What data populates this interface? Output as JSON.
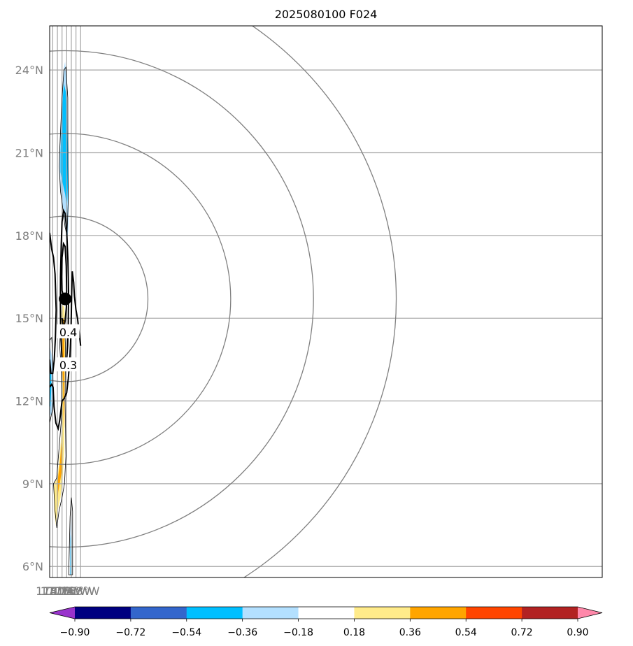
{
  "chart_data": {
    "type": "heatmap",
    "title": "2025080100 F024",
    "map": {
      "lon_range": [
        172,
        169
      ],
      "lat_range": [
        5.6,
        25.6
      ],
      "x_ticks": [
        {
          "lon": 174,
          "label": "174°E"
        },
        {
          "lon": 177,
          "label": "177°E"
        },
        {
          "lon": 180,
          "label": "180°W"
        },
        {
          "lon": 183,
          "label": "177°W"
        },
        {
          "lon": 186,
          "label": "174°W"
        },
        {
          "lon": 189,
          "label": "171°W"
        },
        {
          "lon": 192,
          "label": "168°W"
        }
      ],
      "y_ticks": [
        {
          "lat": 6,
          "label": "6°N"
        },
        {
          "lat": 9,
          "label": "9°N"
        },
        {
          "lat": 12,
          "label": "12°N"
        },
        {
          "lat": 15,
          "label": "15°N"
        },
        {
          "lat": 18,
          "label": "18°N"
        },
        {
          "lat": 21,
          "label": "21°N"
        },
        {
          "lat": 24,
          "label": "24°N"
        }
      ],
      "grid": true,
      "center_marker": {
        "lon": 182.0,
        "lat": 15.7
      },
      "range_rings_lat_radius": [
        3,
        6,
        9,
        12
      ]
    },
    "colorbar": {
      "orientation": "horizontal",
      "extend": "both",
      "bounds": [
        -0.9,
        -0.72,
        -0.54,
        -0.36,
        -0.18,
        0.18,
        0.36,
        0.54,
        0.72,
        0.9
      ],
      "tick_labels": [
        "−0.90",
        "−0.72",
        "−0.54",
        "−0.36",
        "−0.18",
        "0.18",
        "0.36",
        "0.54",
        "0.72",
        "0.90"
      ],
      "colors": [
        "#9933cc",
        "#000080",
        "#3366cc",
        "#00bfff",
        "#b3e0ff",
        "#ffffff",
        "#ffeb8a",
        "#ffa500",
        "#ff4500",
        "#b22222",
        "#ff88aa"
      ]
    },
    "contour_labels": [
      {
        "label": "0.4",
        "lon": 184.0,
        "lat": 14.5
      },
      {
        "label": "0.3",
        "lon": 184.0,
        "lat": 13.3
      }
    ],
    "shaded_regions": [
      {
        "level_color": "#b3e0ff",
        "points": [
          [
            178.5,
            21.3
          ],
          [
            180.0,
            23.0
          ],
          [
            181.0,
            24.0
          ],
          [
            182.0,
            24.3
          ],
          [
            183.0,
            23.5
          ],
          [
            183.5,
            22.0
          ],
          [
            184.3,
            21.0
          ],
          [
            184.5,
            19.5
          ],
          [
            184.0,
            18.2
          ],
          [
            183.0,
            17.7
          ],
          [
            182.0,
            18.5
          ],
          [
            180.5,
            19.0
          ],
          [
            179.0,
            19.6
          ],
          [
            178.2,
            20.5
          ]
        ]
      },
      {
        "level_color": "#00bfff",
        "points": [
          [
            179.0,
            21.0
          ],
          [
            180.5,
            23.0
          ],
          [
            181.2,
            23.5
          ],
          [
            182.5,
            23.2
          ],
          [
            183.0,
            22.5
          ],
          [
            183.7,
            21.0
          ],
          [
            183.8,
            19.8
          ],
          [
            183.2,
            19.0
          ],
          [
            182.0,
            19.5
          ],
          [
            180.0,
            20.0
          ],
          [
            179.0,
            20.3
          ]
        ]
      },
      {
        "level_color": "#ffeb8a",
        "points": [
          [
            179.0,
            15.0
          ],
          [
            180.0,
            15.5
          ],
          [
            181.5,
            15.4
          ],
          [
            182.0,
            14.8
          ],
          [
            182.0,
            13.5
          ],
          [
            181.5,
            12.0
          ],
          [
            181.5,
            10.3
          ],
          [
            180.5,
            9.3
          ],
          [
            179.0,
            8.5
          ],
          [
            177.0,
            8.0
          ],
          [
            176.0,
            7.5
          ],
          [
            175.0,
            8.0
          ],
          [
            174.8,
            9.0
          ],
          [
            177.0,
            9.2
          ],
          [
            178.5,
            10.0
          ],
          [
            179.8,
            11.0
          ],
          [
            180.0,
            12.0
          ],
          [
            180.2,
            13.5
          ],
          [
            179.5,
            14.3
          ]
        ]
      },
      {
        "level_color": "#ffa500",
        "points": [
          [
            180.0,
            15.0
          ],
          [
            181.2,
            15.0
          ],
          [
            181.5,
            14.0
          ],
          [
            181.6,
            11.0
          ],
          [
            181.0,
            11.5
          ],
          [
            180.7,
            12.5
          ],
          [
            180.0,
            13.5
          ],
          [
            179.9,
            14.5
          ]
        ]
      },
      {
        "level_color": "#ffa500",
        "points": [
          [
            176.8,
            8.0
          ],
          [
            177.5,
            8.7
          ],
          [
            178.5,
            9.0
          ],
          [
            180.0,
            9.5
          ],
          [
            180.3,
            10.3
          ],
          [
            179.7,
            10.5
          ],
          [
            178.5,
            9.7
          ],
          [
            176.9,
            9.0
          ]
        ]
      },
      {
        "level_color": "#b3e0ff",
        "points": [
          [
            172,
            14.0
          ],
          [
            173.2,
            13.7
          ],
          [
            174.3,
            13.0
          ],
          [
            174.2,
            12.0
          ],
          [
            173.5,
            11.5
          ],
          [
            172,
            11.5
          ]
        ]
      },
      {
        "level_color": "#00bfff",
        "points": [
          [
            172,
            13.2
          ],
          [
            173.0,
            13.0
          ],
          [
            173.1,
            12.5
          ],
          [
            172.5,
            11.8
          ],
          [
            172,
            11.8
          ]
        ]
      },
      {
        "level_color": "#b3e0ff",
        "points": [
          [
            185.0,
            5.7
          ],
          [
            185.0,
            7.0
          ],
          [
            186.0,
            8.0
          ],
          [
            186.3,
            7.8
          ],
          [
            186.3,
            5.7
          ]
        ]
      },
      {
        "level_color": "#00bfff",
        "points": [
          [
            185.4,
            5.7
          ],
          [
            185.5,
            7.0
          ],
          [
            186.0,
            7.3
          ],
          [
            186.0,
            5.7
          ]
        ]
      }
    ],
    "thin_contours": [
      [
        [
          178.4,
          21.0
        ],
        [
          180.0,
          23.0
        ],
        [
          181.2,
          24.0
        ],
        [
          182.5,
          24.1
        ],
        [
          183.7,
          23.0
        ],
        [
          183.8,
          20.5
        ],
        [
          184.0,
          19.3
        ],
        [
          183.2,
          18.0
        ],
        [
          182.0,
          18.3
        ],
        [
          180.0,
          19.2
        ],
        [
          179.0,
          19.6
        ],
        [
          178.2,
          20.5
        ]
      ],
      [
        [
          178.5,
          14.0
        ],
        [
          179.2,
          15.0
        ],
        [
          181.5,
          14.9
        ],
        [
          182.2,
          14.0
        ],
        [
          182.0,
          12.0
        ],
        [
          182.5,
          10.0
        ],
        [
          181.6,
          9.0
        ],
        [
          180.0,
          8.5
        ],
        [
          178.0,
          8.0
        ],
        [
          176.6,
          7.4
        ],
        [
          175.5,
          8.0
        ],
        [
          174.5,
          9.0
        ],
        [
          176.5,
          9.2
        ],
        [
          179.7,
          11.4
        ],
        [
          179.8,
          12.4
        ],
        [
          179.6,
          13.0
        ]
      ],
      [
        [
          172,
          14.2
        ],
        [
          173.3,
          14.3
        ],
        [
          174.0,
          13.6
        ],
        [
          174.3,
          12.0
        ],
        [
          173.5,
          11.6
        ],
        [
          172,
          11.2
        ]
      ],
      [
        [
          184.3,
          5.7
        ],
        [
          185.2,
          7.8
        ],
        [
          186.0,
          8.5
        ],
        [
          186.8,
          8.0
        ],
        [
          186.8,
          5.7
        ]
      ]
    ],
    "bold_contours": [
      {
        "level": 0.4,
        "points": [
          [
            182.4,
            15.7
          ],
          [
            181.0,
            15.8
          ],
          [
            180.0,
            16.0
          ],
          [
            179.8,
            16.5
          ],
          [
            180.0,
            17.2
          ],
          [
            181.0,
            17.7
          ],
          [
            182.0,
            17.6
          ],
          [
            182.7,
            16.9
          ],
          [
            183.0,
            16.0
          ],
          [
            182.8,
            15.4
          ],
          [
            182.0,
            14.9
          ],
          [
            181.0,
            14.6
          ],
          [
            180.1,
            15.0
          ]
        ]
      },
      {
        "level": 0.3,
        "points": [
          [
            182.0,
            13.3
          ],
          [
            181.0,
            13.3
          ],
          [
            180.0,
            13.5
          ],
          [
            179.1,
            14.5
          ],
          [
            178.9,
            15.5
          ],
          [
            179.0,
            16.5
          ],
          [
            179.5,
            17.7
          ],
          [
            180.0,
            18.5
          ],
          [
            181.0,
            18.9
          ],
          [
            182.0,
            18.8
          ],
          [
            183.0,
            18.2
          ],
          [
            183.8,
            17.1
          ],
          [
            184.2,
            16.0
          ],
          [
            184.0,
            14.8
          ],
          [
            183.6,
            14.0
          ],
          [
            183.0,
            13.5
          ],
          [
            182.3,
            13.3
          ]
        ]
      },
      {
        "level": 0.2,
        "points": [
          [
            172,
            18.1
          ],
          [
            173.3,
            17.5
          ],
          [
            174.5,
            17.2
          ],
          [
            175.5,
            16.6
          ],
          [
            176.2,
            15.3
          ],
          [
            175.7,
            14.3
          ],
          [
            175.0,
            13.5
          ],
          [
            174.0,
            13.0
          ],
          [
            172.8,
            13.0
          ],
          [
            172,
            13.5
          ]
        ]
      },
      {
        "level": 0.2,
        "points": [
          [
            172,
            12.5
          ],
          [
            173.2,
            12.6
          ],
          [
            174.2,
            12.5
          ],
          [
            174.8,
            11.8
          ],
          [
            176.0,
            11.2
          ],
          [
            177.5,
            11.0
          ],
          [
            178.5,
            11.3
          ],
          [
            180.0,
            12.0
          ],
          [
            181.5,
            12.1
          ],
          [
            183.0,
            12.3
          ],
          [
            184.0,
            12.8
          ],
          [
            185.0,
            13.5
          ],
          [
            185.8,
            14.5
          ],
          [
            186.2,
            15.8
          ],
          [
            186.6,
            16.7
          ],
          [
            187.5,
            16.3
          ],
          [
            188.0,
            15.8
          ],
          [
            189.0,
            15.3
          ],
          [
            190.0,
            15.0
          ],
          [
            191.0,
            14.5
          ],
          [
            192,
            14.0
          ]
        ]
      }
    ]
  }
}
